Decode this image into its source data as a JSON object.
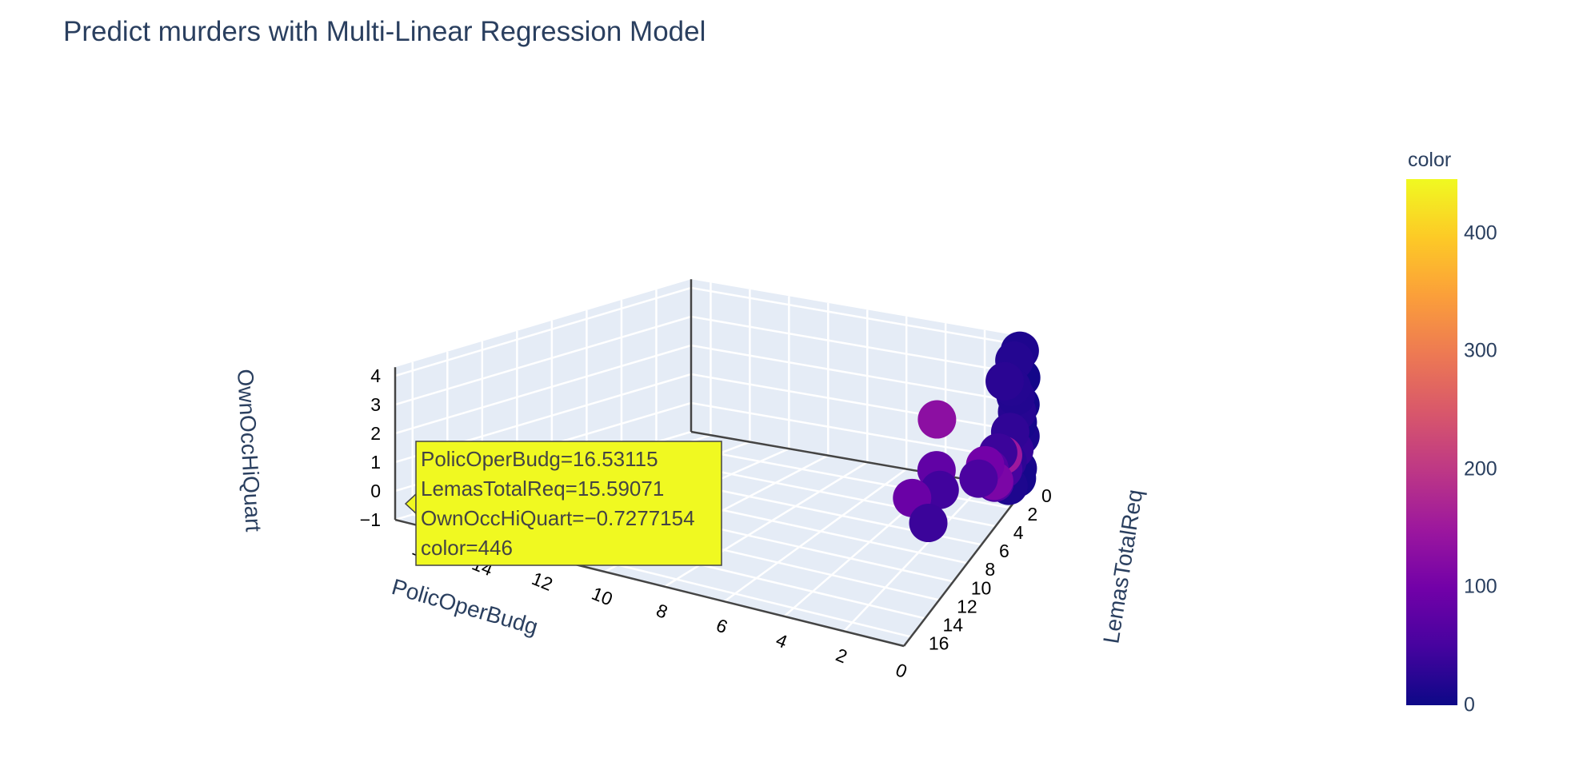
{
  "title": "Predict murders with Multi-Linear Regression Model",
  "colorbar": {
    "title": "color",
    "ticks": [
      "0",
      "100",
      "200",
      "300",
      "400"
    ],
    "tick_values": [
      0,
      100,
      200,
      300,
      400
    ],
    "range": [
      0,
      446
    ],
    "colorscale": [
      "#0d0887",
      "#46039f",
      "#7201a8",
      "#9c179e",
      "#bd3786",
      "#d8576b",
      "#ed7953",
      "#fb9f3a",
      "#fdca26",
      "#f0f921"
    ]
  },
  "hover": {
    "line1": "PolicOperBudg=16.53115",
    "line2": "LemasTotalReq=15.59071",
    "line3": "OwnOccHiQuart=−0.7277154",
    "line4": "color=446",
    "fill": "#f0f921"
  },
  "chart_data": {
    "type": "scatter",
    "dimensions": "3d",
    "title": "Predict murders with Multi-Linear Regression Model",
    "x_axis": {
      "label": "PolicOperBudg",
      "ticks": [
        "0",
        "2",
        "4",
        "6",
        "8",
        "10",
        "12",
        "14",
        "16"
      ],
      "range": [
        0,
        17
      ]
    },
    "y_axis": {
      "label": "LemasTotalReq",
      "ticks": [
        "0",
        "2",
        "4",
        "6",
        "8",
        "10",
        "12",
        "14",
        "16"
      ],
      "range": [
        0,
        17
      ]
    },
    "z_axis": {
      "label": "OwnOccHiQuart",
      "ticks": [
        "−1",
        "0",
        "1",
        "2",
        "3",
        "4"
      ],
      "range": [
        -1,
        4.3
      ]
    },
    "color_label": "color",
    "points": [
      {
        "x": 16.53,
        "y": 15.59,
        "z": -0.73,
        "c": 446
      },
      {
        "x": 3.5,
        "y": 2.0,
        "z": 1.6,
        "c": 130
      },
      {
        "x": 2.8,
        "y": 6.5,
        "z": 0.3,
        "c": 90
      },
      {
        "x": 2.3,
        "y": 5.0,
        "z": 0.9,
        "c": 80
      },
      {
        "x": 1.8,
        "y": 6.0,
        "z": 0.6,
        "c": 45
      },
      {
        "x": 1.6,
        "y": 8.0,
        "z": 0.1,
        "c": 40
      },
      {
        "x": 0.5,
        "y": 1.5,
        "z": 0.6,
        "c": 150
      },
      {
        "x": 1.0,
        "y": 2.5,
        "z": 0.5,
        "c": 100
      },
      {
        "x": 0.4,
        "y": 3.0,
        "z": 0.2,
        "c": 110
      },
      {
        "x": 0.3,
        "y": 0.5,
        "z": 3.6,
        "c": 20
      },
      {
        "x": 0.1,
        "y": 0.3,
        "z": 3.9,
        "c": 15
      },
      {
        "x": 0.6,
        "y": 1.0,
        "z": 3.0,
        "c": 25
      },
      {
        "x": 0.2,
        "y": 0.6,
        "z": 2.4,
        "c": 18
      },
      {
        "x": 0.2,
        "y": 0.4,
        "z": 1.8,
        "c": 22
      },
      {
        "x": 0.4,
        "y": 0.8,
        "z": 1.2,
        "c": 30
      },
      {
        "x": 0.1,
        "y": 0.2,
        "z": 0.9,
        "c": 12
      },
      {
        "x": 0.3,
        "y": 0.5,
        "z": 0.5,
        "c": 35
      },
      {
        "x": 0.5,
        "y": 0.9,
        "z": 0.2,
        "c": 28
      },
      {
        "x": 0.2,
        "y": 0.3,
        "z": -0.2,
        "c": 10
      },
      {
        "x": 0.6,
        "y": 1.2,
        "z": 0.0,
        "c": 50
      },
      {
        "x": 0.8,
        "y": 1.8,
        "z": -0.3,
        "c": 60
      },
      {
        "x": 0.3,
        "y": 1.3,
        "z": -0.5,
        "c": 14
      },
      {
        "x": 0.1,
        "y": 0.7,
        "z": -0.4,
        "c": 8
      },
      {
        "x": 0.1,
        "y": 0.1,
        "z": 2.9,
        "c": 5
      },
      {
        "x": 0.1,
        "y": 0.2,
        "z": 2.0,
        "c": 6
      },
      {
        "x": 0.2,
        "y": 0.3,
        "z": 1.4,
        "c": 9
      },
      {
        "x": 0.7,
        "y": 1.6,
        "z": 0.7,
        "c": 40
      },
      {
        "x": 0.9,
        "y": 2.2,
        "z": 0.3,
        "c": 65
      },
      {
        "x": 1.2,
        "y": 2.8,
        "z": 0.1,
        "c": 55
      },
      {
        "x": 0.4,
        "y": 0.6,
        "z": 2.7,
        "c": 20
      }
    ]
  }
}
